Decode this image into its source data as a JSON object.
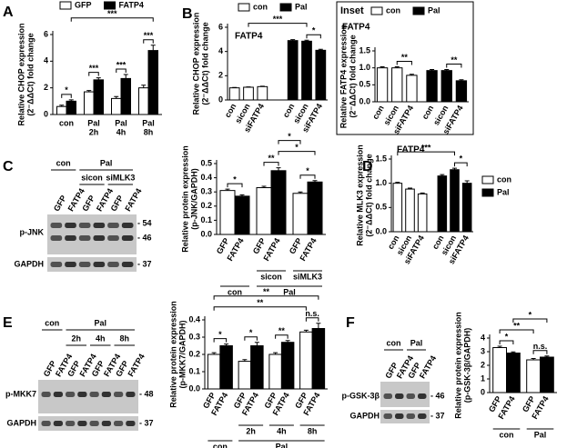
{
  "chart_data": [
    {
      "type": "bar",
      "panel": "A",
      "ylabel": [
        "Relative CHOP expression",
        "(2⁻ΔΔCt) fold change"
      ],
      "categories": [
        "con",
        "Pal",
        "Pal",
        "Pal"
      ],
      "category_sublabels": [
        null,
        "2h",
        "4h",
        "8h"
      ],
      "series": [
        {
          "name": "GFP",
          "color": "#ffffff",
          "values": [
            0.6,
            1.7,
            1.2,
            2.0
          ],
          "errors": [
            0.1,
            0.1,
            0.15,
            0.2
          ]
        },
        {
          "name": "FATP4",
          "color": "#000000",
          "values": [
            1.0,
            2.6,
            2.7,
            4.8
          ],
          "errors": [
            0.1,
            0.15,
            0.3,
            0.4
          ]
        }
      ],
      "ylim": [
        0,
        6
      ],
      "yticks": [
        0,
        2,
        4,
        6
      ],
      "legend": "top",
      "annotations": [
        "*",
        "***",
        "***",
        "***",
        "***"
      ]
    },
    {
      "type": "bar",
      "panel": "B",
      "title": "FATP4",
      "ylabel": [
        "Relative CHOP expression",
        "(2⁻ΔΔCt) fold change"
      ],
      "categories": [
        "con",
        "sicon",
        "siFATP4",
        "con",
        "sicon",
        "siFATP4"
      ],
      "series": [
        {
          "name": "con",
          "color": "#ffffff",
          "values": [
            1.0,
            1.05,
            1.1,
            null,
            null,
            null
          ],
          "errors": [
            0.03,
            0.03,
            0.03,
            null,
            null,
            null
          ]
        },
        {
          "name": "Pal",
          "color": "#000000",
          "values": [
            null,
            null,
            null,
            4.9,
            4.85,
            4.1
          ],
          "errors": [
            null,
            null,
            null,
            0.08,
            0.08,
            0.08
          ]
        }
      ],
      "ylim": [
        0,
        6
      ],
      "yticks": [
        0,
        2,
        4,
        6
      ],
      "legend": "top",
      "annotations": [
        "***",
        "*"
      ]
    },
    {
      "type": "bar",
      "panel": "Inset",
      "title": "FATP4",
      "ylabel": [
        "Relative FATP4 expression",
        "(2⁻ΔΔCt) fold change"
      ],
      "categories": [
        "con",
        "sicon",
        "siFATP4",
        "con",
        "sicon",
        "siFATP4"
      ],
      "series": [
        {
          "name": "con",
          "color": "#ffffff",
          "values": [
            1.0,
            1.0,
            0.78,
            null,
            null,
            null
          ],
          "errors": [
            0.03,
            0.03,
            0.03,
            null,
            null,
            null
          ]
        },
        {
          "name": "Pal",
          "color": "#000000",
          "values": [
            null,
            null,
            null,
            0.92,
            0.92,
            0.62
          ],
          "errors": [
            null,
            null,
            null,
            0.03,
            0.03,
            0.03
          ]
        }
      ],
      "ylim": [
        0,
        1.5
      ],
      "yticks": [
        {
          "value": 0,
          "label": "0.0"
        },
        0.5,
        {
          "value": 1,
          "label": "1.0"
        },
        1.5
      ],
      "legend": "top",
      "annotations": [
        "**",
        "**"
      ]
    },
    {
      "type": "bar",
      "panel": "C",
      "ylabel": [
        "Relative protein expression",
        "(p-JNK/GAPDH)"
      ],
      "categories": [
        null,
        null,
        null
      ],
      "group_labels": [
        "sicon",
        "siMLK3",
        "con",
        "Pal"
      ],
      "series": [
        {
          "name": "GFP",
          "color": "#ffffff",
          "values": [
            0.31,
            0.33,
            0.29
          ],
          "errors": [
            0.01,
            0.01,
            0.01
          ]
        },
        {
          "name": "FATP4",
          "color": "#000000",
          "values": [
            0.27,
            0.45,
            0.37
          ],
          "errors": [
            0.01,
            0.02,
            0.01
          ]
        }
      ],
      "ylim": [
        0,
        0.5
      ],
      "yticks": [
        {
          "value": 0,
          "label": "0.0"
        },
        0.1,
        0.2,
        0.3,
        0.4,
        0.5
      ],
      "annotations": [
        "*",
        "**",
        "*",
        "*",
        "*"
      ]
    },
    {
      "type": "bar",
      "panel": "D",
      "title": "FATP4",
      "ylabel": [
        "Relative MLK3 expression",
        "(2⁻ΔΔCt) fold change"
      ],
      "categories": [
        "con",
        "sicon",
        "siFATP4",
        "con",
        "sicon",
        "siFATP4"
      ],
      "series": [
        {
          "name": "con",
          "color": "#ffffff",
          "values": [
            1.0,
            0.88,
            0.78,
            null,
            null,
            null
          ],
          "errors": [
            0.02,
            0.02,
            0.02,
            null,
            null,
            null
          ]
        },
        {
          "name": "Pal",
          "color": "#000000",
          "values": [
            null,
            null,
            null,
            1.15,
            1.28,
            1.0
          ],
          "errors": [
            null,
            null,
            null,
            0.03,
            0.03,
            0.05
          ]
        }
      ],
      "ylim": [
        0,
        1.5
      ],
      "yticks": [
        {
          "value": 0,
          "label": "0.0"
        },
        0.5,
        {
          "value": 1,
          "label": "1.0"
        },
        1.5
      ],
      "legend": "right",
      "annotations": [
        "***",
        "*"
      ]
    },
    {
      "type": "bar",
      "panel": "E",
      "ylabel": [
        "Relative protein expression",
        "(p-MKK7/GAPDH)"
      ],
      "categories": [
        null,
        null,
        null,
        null
      ],
      "group_labels": [
        "2h",
        "4h",
        "8h",
        "con",
        "Pal"
      ],
      "series": [
        {
          "name": "GFP",
          "color": "#ffffff",
          "values": [
            0.2,
            0.16,
            0.2,
            0.33
          ],
          "errors": [
            0.01,
            0.01,
            0.01,
            0.01
          ]
        },
        {
          "name": "FATP4",
          "color": "#000000",
          "values": [
            0.25,
            0.25,
            0.27,
            0.35
          ],
          "errors": [
            0.01,
            0.02,
            0.01,
            0.03
          ]
        }
      ],
      "ylim": [
        0,
        0.4
      ],
      "yticks": [
        {
          "value": 0,
          "label": "0.0"
        },
        0.1,
        0.2,
        0.3,
        0.4
      ],
      "annotations": [
        "*",
        "*",
        "**",
        "n.s.",
        "**",
        "**"
      ]
    },
    {
      "type": "bar",
      "panel": "F",
      "ylabel": [
        "Relative protein expression",
        "(p-GSK-3β/GAPDH)"
      ],
      "categories": [
        null,
        null
      ],
      "group_labels": [
        "con",
        "Pal"
      ],
      "series": [
        {
          "name": "GFP",
          "color": "#ffffff",
          "values": [
            3.3,
            2.4
          ],
          "errors": [
            0.1,
            0.1
          ]
        },
        {
          "name": "FATP4",
          "color": "#000000",
          "values": [
            2.9,
            2.6
          ],
          "errors": [
            0.08,
            0.08
          ]
        }
      ],
      "ylim": [
        0,
        4
      ],
      "yticks": [
        0,
        1,
        2,
        3,
        4
      ],
      "annotations": [
        "*",
        "**",
        "n.s.",
        "*"
      ]
    }
  ],
  "blots": [
    {
      "headers": [
        "con",
        "Pal",
        "sicon",
        "siMLK3"
      ],
      "lanes": [
        "GFP",
        "FATP4",
        "GFP",
        "FATP4",
        "GFP",
        "FATP4"
      ],
      "rows": [
        "p-JNK",
        "GAPDH"
      ],
      "markers": [
        "- 54",
        "- 46",
        "- 37"
      ]
    },
    {
      "headers": [
        "con",
        "Pal",
        "2h",
        "4h",
        "8h"
      ],
      "lanes": [
        "GFP",
        "FATP4",
        "GFP",
        "FATP4",
        "GFP",
        "FATP4",
        "GFP",
        "FATP4"
      ],
      "rows": [
        "p-MKK7",
        "GAPDH"
      ],
      "markers": [
        "- 48",
        "- 37"
      ]
    },
    {
      "headers": [
        "con",
        "Pal"
      ],
      "lanes": [
        "GFP",
        "FATP4",
        "GFP",
        "FATP4"
      ],
      "rows": [
        "p-GSK-3β",
        "GAPDH"
      ],
      "markers": [
        "- 46",
        "- 37"
      ]
    }
  ]
}
